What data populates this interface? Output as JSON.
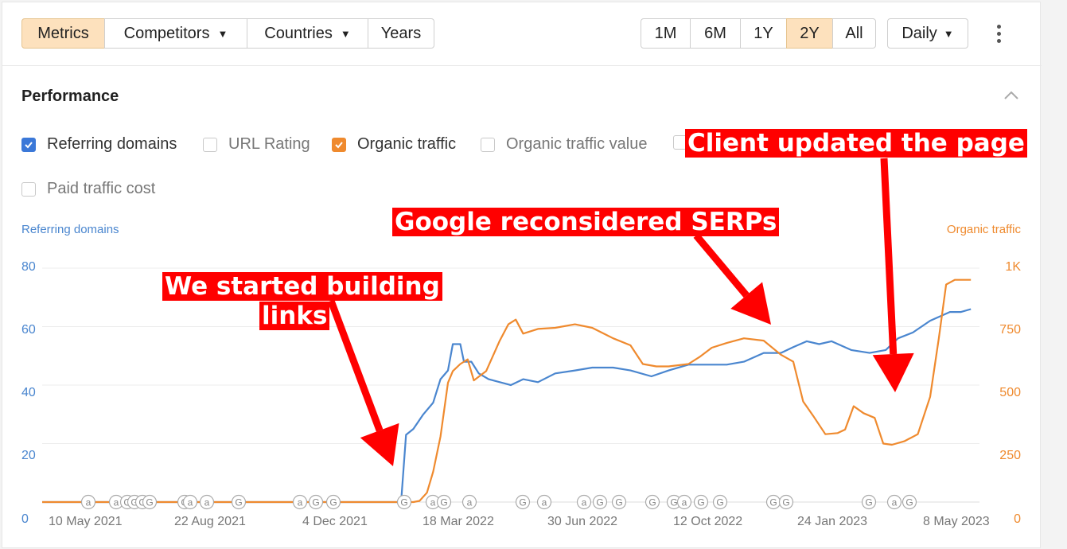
{
  "toolbar": {
    "tabs": [
      {
        "label": "Metrics",
        "active": true
      },
      {
        "label": "Competitors",
        "dropdown": true
      },
      {
        "label": "Countries",
        "dropdown": true
      },
      {
        "label": "Years"
      }
    ],
    "ranges": [
      "1M",
      "6M",
      "1Y",
      "2Y",
      "All"
    ],
    "active_range": "2Y",
    "granularity": "Daily",
    "more_icon": "vertical-dots-icon"
  },
  "section": {
    "title": "Performance",
    "collapse_icon": "chevron-up-icon"
  },
  "filters": [
    {
      "label": "Referring domains",
      "checked": true,
      "color": "#3b78d8"
    },
    {
      "label": "URL Rating",
      "checked": false
    },
    {
      "label": "Organic traffic",
      "checked": true,
      "color": "#ef8a2e"
    },
    {
      "label": "Organic traffic value",
      "checked": false
    },
    {
      "label": "Paid traffic cost",
      "checked": false
    }
  ],
  "annotations": {
    "client": "Client updated the page",
    "google": "Google reconsidered SERPs",
    "started_1": "We started building",
    "started_2": "links"
  },
  "chart_data": {
    "type": "line",
    "left_axis": {
      "title": "Referring domains",
      "ticks": [
        "80",
        "60",
        "40",
        "20",
        "0"
      ],
      "ylim": [
        0,
        80
      ],
      "color": "#4a86cf"
    },
    "right_axis": {
      "title": "Organic traffic",
      "ticks": [
        "1K",
        "750",
        "500",
        "250",
        "0"
      ],
      "ylim": [
        0,
        1000
      ],
      "color": "#ef8a2e"
    },
    "x_ticks": [
      "10 May 2021",
      "22 Aug 2021",
      "4 Dec 2021",
      "18 Mar 2022",
      "30 Jun 2022",
      "12 Oct 2022",
      "24 Jan 2023",
      "8 May 2023"
    ],
    "x_range": [
      "2021-04-25",
      "2023-05-25"
    ],
    "grid": true,
    "series": [
      {
        "name": "Referring domains",
        "axis": "left",
        "color": "#4a86cf",
        "points": [
          [
            "2021-04-25",
            0
          ],
          [
            "2022-02-10",
            0
          ],
          [
            "2022-02-14",
            23
          ],
          [
            "2022-02-20",
            25
          ],
          [
            "2022-02-28",
            30
          ],
          [
            "2022-03-08",
            34
          ],
          [
            "2022-03-14",
            42
          ],
          [
            "2022-03-20",
            45
          ],
          [
            "2022-03-24",
            54
          ],
          [
            "2022-03-30",
            54
          ],
          [
            "2022-04-02",
            48
          ],
          [
            "2022-04-08",
            48
          ],
          [
            "2022-04-14",
            44
          ],
          [
            "2022-04-22",
            42
          ],
          [
            "2022-05-01",
            41
          ],
          [
            "2022-05-10",
            40
          ],
          [
            "2022-05-20",
            42
          ],
          [
            "2022-06-01",
            41
          ],
          [
            "2022-06-15",
            44
          ],
          [
            "2022-07-01",
            45
          ],
          [
            "2022-07-15",
            46
          ],
          [
            "2022-08-01",
            46
          ],
          [
            "2022-08-15",
            45
          ],
          [
            "2022-09-01",
            43
          ],
          [
            "2022-09-15",
            45
          ],
          [
            "2022-10-01",
            47
          ],
          [
            "2022-10-15",
            47
          ],
          [
            "2022-11-01",
            47
          ],
          [
            "2022-11-15",
            48
          ],
          [
            "2022-12-01",
            51
          ],
          [
            "2022-12-15",
            51
          ],
          [
            "2022-12-25",
            53
          ],
          [
            "2023-01-05",
            55
          ],
          [
            "2023-01-15",
            54
          ],
          [
            "2023-01-25",
            55
          ],
          [
            "2023-02-10",
            52
          ],
          [
            "2023-02-25",
            51
          ],
          [
            "2023-03-10",
            52
          ],
          [
            "2023-03-20",
            56
          ],
          [
            "2023-04-01",
            58
          ],
          [
            "2023-04-15",
            62
          ],
          [
            "2023-05-01",
            65
          ],
          [
            "2023-05-10",
            65
          ],
          [
            "2023-05-18",
            66
          ]
        ]
      },
      {
        "name": "Organic traffic",
        "axis": "right",
        "color": "#ef8a2e",
        "points": [
          [
            "2021-04-25",
            0
          ],
          [
            "2022-02-20",
            0
          ],
          [
            "2022-02-25",
            5
          ],
          [
            "2022-03-03",
            40
          ],
          [
            "2022-03-08",
            130
          ],
          [
            "2022-03-14",
            280
          ],
          [
            "2022-03-20",
            510
          ],
          [
            "2022-03-24",
            560
          ],
          [
            "2022-03-30",
            590
          ],
          [
            "2022-04-05",
            610
          ],
          [
            "2022-04-10",
            520
          ],
          [
            "2022-04-20",
            560
          ],
          [
            "2022-05-01",
            690
          ],
          [
            "2022-05-08",
            760
          ],
          [
            "2022-05-14",
            780
          ],
          [
            "2022-05-20",
            720
          ],
          [
            "2022-06-01",
            740
          ],
          [
            "2022-06-15",
            745
          ],
          [
            "2022-07-01",
            760
          ],
          [
            "2022-07-15",
            745
          ],
          [
            "2022-08-01",
            700
          ],
          [
            "2022-08-15",
            670
          ],
          [
            "2022-08-25",
            590
          ],
          [
            "2022-09-05",
            580
          ],
          [
            "2022-09-15",
            580
          ],
          [
            "2022-10-01",
            590
          ],
          [
            "2022-10-10",
            620
          ],
          [
            "2022-10-20",
            660
          ],
          [
            "2022-11-01",
            680
          ],
          [
            "2022-11-15",
            700
          ],
          [
            "2022-12-01",
            690
          ],
          [
            "2022-12-15",
            630
          ],
          [
            "2022-12-25",
            600
          ],
          [
            "2023-01-02",
            430
          ],
          [
            "2023-01-10",
            370
          ],
          [
            "2023-01-20",
            290
          ],
          [
            "2023-01-30",
            295
          ],
          [
            "2023-02-05",
            310
          ],
          [
            "2023-02-12",
            410
          ],
          [
            "2023-02-20",
            380
          ],
          [
            "2023-03-01",
            360
          ],
          [
            "2023-03-08",
            250
          ],
          [
            "2023-03-15",
            245
          ],
          [
            "2023-03-25",
            260
          ],
          [
            "2023-04-05",
            290
          ],
          [
            "2023-04-15",
            450
          ],
          [
            "2023-04-22",
            700
          ],
          [
            "2023-04-28",
            930
          ],
          [
            "2023-05-05",
            950
          ],
          [
            "2023-05-18",
            950
          ]
        ]
      }
    ],
    "event_markers": [
      "a",
      "a",
      "G",
      "G",
      "G",
      "G",
      "G",
      "a",
      "a",
      "G",
      "a",
      "G",
      "G",
      "G",
      "a",
      "G",
      "a",
      "G",
      "a",
      "a",
      "G",
      "G",
      "G",
      "G",
      "a",
      "G",
      "G",
      "G",
      "G",
      "G",
      "a",
      "G"
    ]
  }
}
